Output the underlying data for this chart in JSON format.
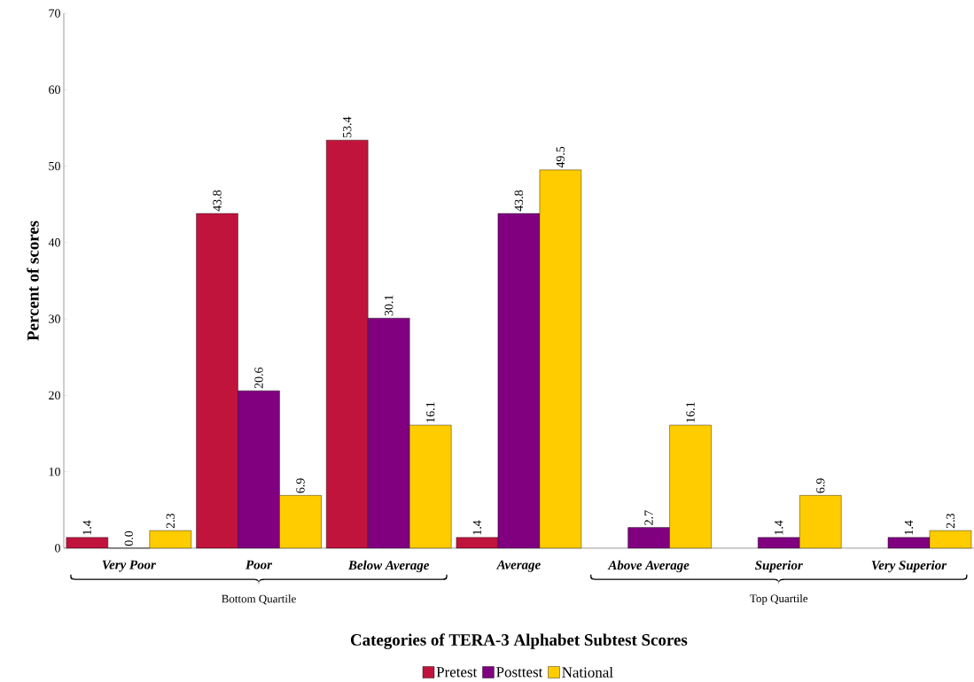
{
  "chart_data": {
    "type": "bar",
    "xlabel": "Categories of TERA-3 Alphabet Subtest Scores",
    "ylabel": "Percent of scores",
    "categories": [
      "Very Poor",
      "Poor",
      "Below Average",
      "Average",
      "Above Average",
      "Superior",
      "Very Superior"
    ],
    "series": [
      {
        "name": "Pretest",
        "color": "#c0143c",
        "values": [
          1.4,
          43.8,
          53.4,
          1.4,
          null,
          null,
          null
        ],
        "value_labels": [
          "1.4",
          "43.8",
          "53.4",
          "1.4",
          null,
          null,
          null
        ]
      },
      {
        "name": "Posttest",
        "color": "#800080",
        "values": [
          0.0,
          20.6,
          30.1,
          43.8,
          2.7,
          1.4,
          1.4
        ],
        "value_labels": [
          "0.0",
          "20.6",
          "30.1",
          "43.8",
          "2.7",
          "1.4",
          "1.4"
        ]
      },
      {
        "name": "National",
        "color": "#ffcc00",
        "values": [
          2.3,
          6.9,
          16.1,
          49.5,
          16.1,
          6.9,
          2.3
        ],
        "value_labels": [
          "2.3",
          "6.9",
          "16.1",
          "49.5",
          "16.1",
          "6.9",
          "2.3"
        ]
      }
    ],
    "ylim": [
      0,
      70
    ],
    "yticks": [
      0,
      10,
      20,
      30,
      40,
      50,
      60,
      70
    ],
    "legend": "bottom",
    "annotations": [
      "Bottom Quartile",
      "Top Quartile"
    ]
  }
}
